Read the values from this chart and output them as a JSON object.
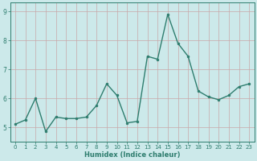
{
  "x": [
    0,
    1,
    2,
    3,
    4,
    5,
    6,
    7,
    8,
    9,
    10,
    11,
    12,
    13,
    14,
    15,
    16,
    17,
    18,
    19,
    20,
    21,
    22,
    23
  ],
  "y": [
    5.1,
    5.25,
    6.0,
    4.85,
    5.35,
    5.3,
    5.3,
    5.35,
    5.75,
    6.5,
    6.1,
    5.15,
    5.2,
    7.45,
    7.35,
    8.9,
    7.9,
    7.45,
    6.25,
    6.05,
    5.95,
    6.1,
    6.4,
    6.5
  ],
  "xlabel": "Humidex (Indice chaleur)",
  "line_color": "#2e7d6e",
  "marker_color": "#2e7d6e",
  "bg_color": "#cce9ea",
  "grid_color": "#b0d4d5",
  "axis_color": "#2e7d6e",
  "tick_color": "#2e7d6e",
  "xlabel_color": "#2e7d6e",
  "ylim": [
    4.5,
    9.3
  ],
  "xlim": [
    -0.5,
    23.5
  ],
  "yticks": [
    5,
    6,
    7,
    8,
    9
  ],
  "xticks": [
    0,
    1,
    2,
    3,
    4,
    5,
    6,
    7,
    8,
    9,
    10,
    11,
    12,
    13,
    14,
    15,
    16,
    17,
    18,
    19,
    20,
    21,
    22,
    23
  ]
}
